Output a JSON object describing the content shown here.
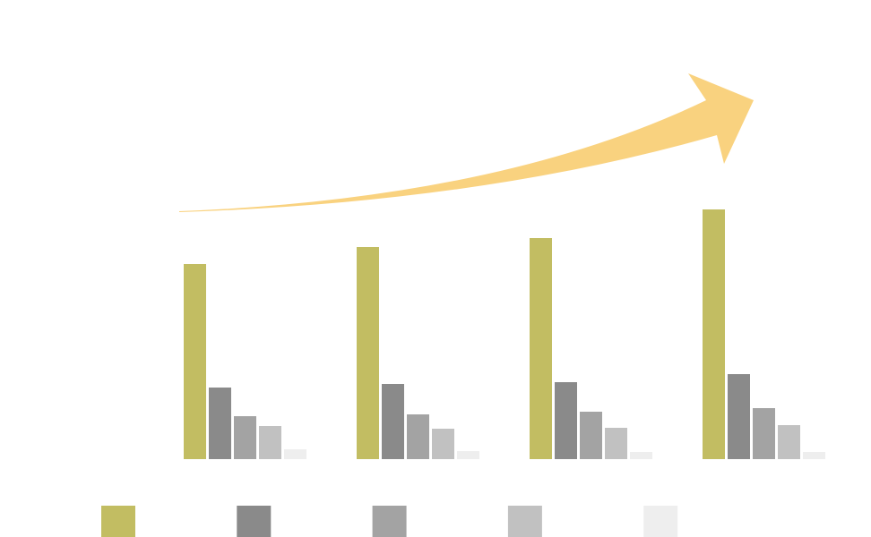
{
  "chart_data": {
    "type": "bar",
    "categories": [
      null,
      null,
      null,
      null
    ],
    "series": [
      {
        "color": "#c2bd62",
        "values": [
          218,
          237,
          247,
          279
        ]
      },
      {
        "color": "#8a8a8a",
        "values": [
          80,
          84,
          86,
          95
        ]
      },
      {
        "color": "#a3a3a3",
        "values": [
          48,
          50,
          53,
          57
        ]
      },
      {
        "color": "#c1c1c1",
        "values": [
          37,
          34,
          35,
          38
        ]
      },
      {
        "color": "#eeeeee",
        "values": [
          11,
          9,
          8,
          8
        ]
      }
    ],
    "ylim": [
      0,
      300
    ],
    "grid": false
  }
}
